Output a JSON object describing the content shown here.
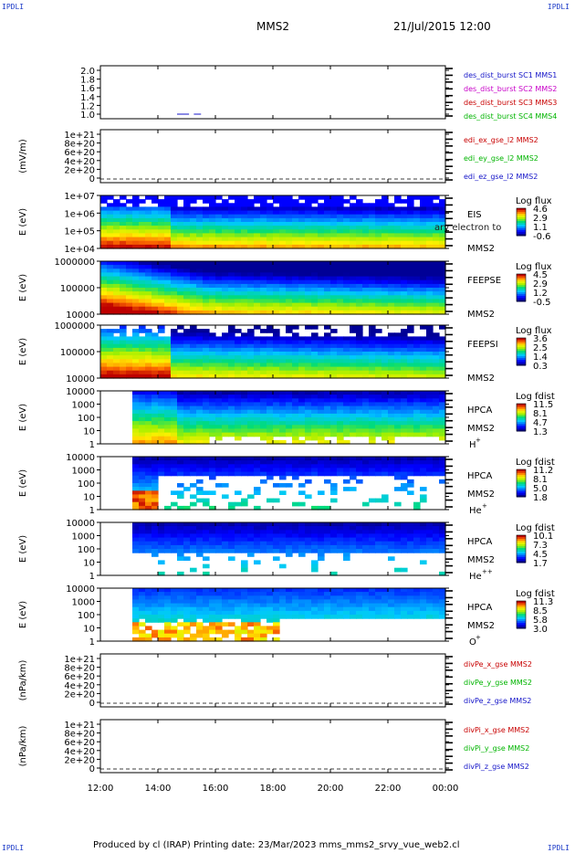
{
  "corners": {
    "tl": "IPDLI",
    "tr": "IPDLI",
    "bl": "IPDLI",
    "br": "IPDLI"
  },
  "header": {
    "spacecraft": "MMS2",
    "datetime": "21/Jul/2015 12:00"
  },
  "footer": {
    "text": "Produced by cl (IRAP)   Printing date: 23/Mar/2023   mms_mms2_srvy_vue_web2.cl"
  },
  "colors": {
    "sc1": "#1414c8",
    "sc2": "#c800c8",
    "sc3": "#c80000",
    "sc4": "#00b400",
    "ex": "#c80000",
    "ey": "#00b400",
    "ez": "#1414c8"
  },
  "chart_data": [
    {
      "type": "line",
      "id": "dist",
      "yticks": [
        "2.0",
        "1.8",
        "1.6",
        "1.4",
        "1.2",
        "1.0"
      ],
      "legend": [
        {
          "label": "des_dist_burst SC1 MMS1",
          "color": "#1414c8"
        },
        {
          "label": "des_dist_burst SC2 MMS2",
          "color": "#c800c8"
        },
        {
          "label": "des_dist_burst SC3 MMS3",
          "color": "#c80000"
        },
        {
          "label": "des_dist_burst SC4 MMS4",
          "color": "#00b400"
        }
      ],
      "segments": [
        {
          "x0": "14:40",
          "x1": "15:05",
          "y": 1.0
        },
        {
          "x0": "15:15",
          "x1": "15:30",
          "y": 1.0
        }
      ]
    },
    {
      "type": "line",
      "id": "edi",
      "ylabel": "(mV/m)",
      "yticks": [
        "1e+21",
        "8e+20",
        "6e+20",
        "4e+20",
        "2e+20",
        "0"
      ],
      "legend": [
        {
          "label": "edi_ex_gse_l2 MMS2",
          "color": "#c80000"
        },
        {
          "label": "edi_ey_gse_l2 MMS2",
          "color": "#00b400"
        },
        {
          "label": "edi_ez_gse_l2 MMS2",
          "color": "#1414c8"
        }
      ]
    },
    {
      "type": "heatmap",
      "id": "eis",
      "ylabel": "E (eV)",
      "yticks": [
        "1e+07",
        "1e+06",
        "1e+05",
        "1e+04"
      ],
      "instrument": "EIS",
      "subtitle": "MMS2",
      "overlay": "ary electron to",
      "cbar_title": "Log flux",
      "cbar_ticks": [
        "4.6",
        "2.9",
        "1.1",
        "-0.6"
      ]
    },
    {
      "type": "heatmap",
      "id": "feepse",
      "ylabel": "E (eV)",
      "yticks": [
        "1000000",
        "100000",
        "10000"
      ],
      "instrument": "FEEPSE",
      "subtitle": "MMS2",
      "cbar_title": "Log flux",
      "cbar_ticks": [
        "4.5",
        "2.9",
        "1.2",
        "-0.5"
      ]
    },
    {
      "type": "heatmap",
      "id": "feepsi",
      "ylabel": "E (eV)",
      "yticks": [
        "1000000",
        "100000",
        "10000"
      ],
      "instrument": "FEEPSI",
      "subtitle": "MMS2",
      "cbar_title": "Log flux",
      "cbar_ticks": [
        "3.6",
        "2.5",
        "1.4",
        "0.3"
      ]
    },
    {
      "type": "heatmap",
      "id": "hpca_h",
      "ylabel": "E (eV)",
      "yticks": [
        "10000",
        "1000",
        "100",
        "10",
        "1"
      ],
      "instrument": "HPCA",
      "subtitle": "MMS2",
      "species": "H",
      "charge": "+",
      "cbar_title": "Log fdist",
      "cbar_ticks": [
        "11.5",
        "8.1",
        "4.7",
        "1.3"
      ]
    },
    {
      "type": "heatmap",
      "id": "hpca_he",
      "ylabel": "E (eV)",
      "yticks": [
        "10000",
        "1000",
        "100",
        "10",
        "1"
      ],
      "instrument": "HPCA",
      "subtitle": "MMS2",
      "species": "He",
      "charge": "+",
      "cbar_title": "Log fdist",
      "cbar_ticks": [
        "11.2",
        "8.1",
        "5.0",
        "1.8"
      ]
    },
    {
      "type": "heatmap",
      "id": "hpca_hepp",
      "ylabel": "E (eV)",
      "yticks": [
        "10000",
        "1000",
        "100",
        "10",
        "1"
      ],
      "instrument": "HPCA",
      "subtitle": "MMS2",
      "species": "He",
      "charge": "++",
      "cbar_title": "Log fdist",
      "cbar_ticks": [
        "10.1",
        "7.3",
        "4.5",
        "1.7"
      ]
    },
    {
      "type": "heatmap",
      "id": "hpca_o",
      "ylabel": "E (eV)",
      "yticks": [
        "10000",
        "1000",
        "100",
        "10",
        "1"
      ],
      "instrument": "HPCA",
      "subtitle": "MMS2",
      "species": "O",
      "charge": "+",
      "cbar_title": "Log fdist",
      "cbar_ticks": [
        "11.3",
        "8.5",
        "5.8",
        "3.0"
      ]
    },
    {
      "type": "line",
      "id": "divpe",
      "ylabel": "(nPa/km)",
      "yticks": [
        "1e+21",
        "8e+20",
        "6e+20",
        "4e+20",
        "2e+20",
        "0"
      ],
      "legend": [
        {
          "label": "divPe_x_gse MMS2",
          "color": "#c80000"
        },
        {
          "label": "divPe_y_gse MMS2",
          "color": "#00b400"
        },
        {
          "label": "divPe_z_gse MMS2",
          "color": "#1414c8"
        }
      ]
    },
    {
      "type": "line",
      "id": "divpi",
      "ylabel": "(nPa/km)",
      "yticks": [
        "1e+21",
        "8e+20",
        "6e+20",
        "4e+20",
        "2e+20",
        "0"
      ],
      "legend": [
        {
          "label": "divPi_x_gse MMS2",
          "color": "#c80000"
        },
        {
          "label": "divPi_y_gse MMS2",
          "color": "#00b400"
        },
        {
          "label": "divPi_z_gse MMS2",
          "color": "#1414c8"
        }
      ]
    }
  ],
  "xaxis": {
    "ticks": [
      "12:00",
      "14:00",
      "16:00",
      "18:00",
      "20:00",
      "22:00",
      "00:00"
    ]
  }
}
